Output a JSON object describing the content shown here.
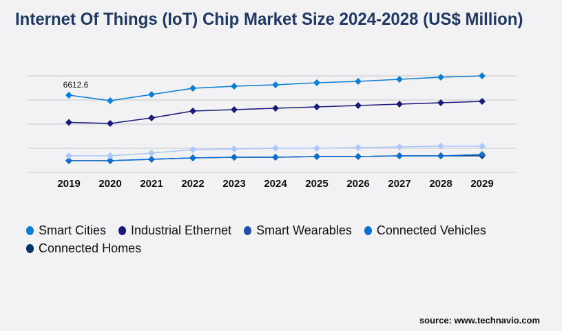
{
  "title": "Internet Of Things (IoT) Chip Market Size 2024-2028 (US$ Million)",
  "source": "source: www.technavio.com",
  "chart_data": {
    "type": "line",
    "title": "Internet Of Things (IoT) Chip Market Size 2024-2028 (US$ Million)",
    "xlabel": "",
    "ylabel": "",
    "x": [
      "2019",
      "2020",
      "2021",
      "2022",
      "2023",
      "2024",
      "2025",
      "2026",
      "2027",
      "2028",
      "2029"
    ],
    "ylim": [
      0,
      8266
    ],
    "grid": true,
    "legend_position": "bottom",
    "annotations": [
      {
        "series": "Smart Cities",
        "x": "2019",
        "text": "6612.6"
      }
    ],
    "series": [
      {
        "name": "Smart Cities",
        "color": "#0a7fd4",
        "legend_color": "#0a7fd4",
        "values": [
          6612.6,
          6140,
          6672,
          7203,
          7380,
          7498,
          7675,
          7793,
          7970,
          8148,
          8266
        ]
      },
      {
        "name": "Industrial Ethernet",
        "color": "#1a1a78",
        "legend_color": "#1a1a78",
        "values": [
          4280,
          4192,
          4664,
          5255,
          5373,
          5491,
          5609,
          5727,
          5845,
          5963,
          6081
        ]
      },
      {
        "name": "Smart Wearables",
        "color": "#a8c8ff",
        "legend_color": "#1f4fb0",
        "values": [
          1417,
          1417,
          1653,
          1948,
          2007,
          2066,
          2066,
          2125,
          2184,
          2243,
          2243
        ]
      },
      {
        "name": "Connected Vehicles",
        "color": "#0a6fd0",
        "legend_color": "#0a6fd0",
        "values": [
          1004,
          1004,
          1122,
          1240,
          1299,
          1299,
          1358,
          1358,
          1417,
          1417,
          1535
        ]
      },
      {
        "name": "Connected Homes",
        "color": "#003366",
        "legend_color": "#003366",
        "values": [
          1004,
          1004,
          1122,
          1240,
          1299,
          1299,
          1358,
          1358,
          1417,
          1417,
          1417
        ]
      }
    ]
  }
}
